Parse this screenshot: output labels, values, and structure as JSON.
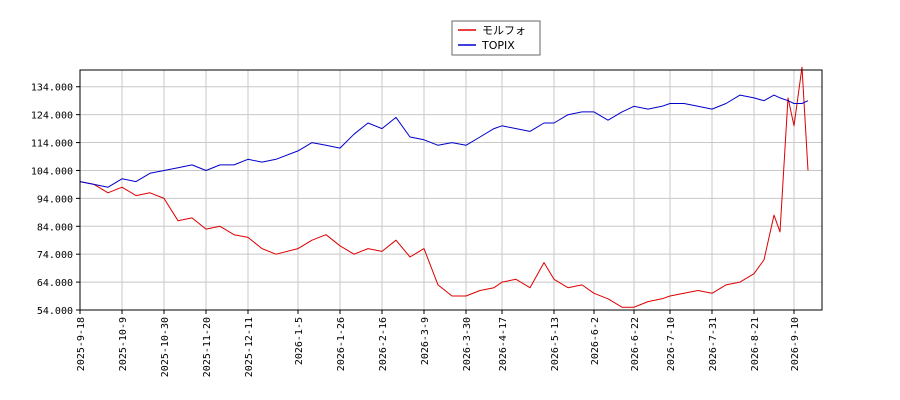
{
  "chart_data": {
    "type": "line",
    "title": "",
    "xlabel": "",
    "ylabel": "",
    "ylim": [
      54.0,
      140.0
    ],
    "y_ticks": [
      "54.000",
      "64.000",
      "74.000",
      "84.000",
      "94.000",
      "104.000",
      "114.000",
      "124.000",
      "134.000"
    ],
    "y_tick_values": [
      54,
      64,
      74,
      84,
      94,
      104,
      114,
      124,
      134
    ],
    "x_ticks": [
      "2025-9-18",
      "2025-10-9",
      "2025-10-30",
      "2025-11-20",
      "2025-12-11",
      "2026-1-5",
      "2026-1-26",
      "2026-2-16",
      "2026-3-9",
      "2026-3-30",
      "2026-4-17",
      "2026-5-13",
      "2026-6-2",
      "2026-6-22",
      "2026-7-10",
      "2026-7-31",
      "2026-8-21",
      "2026-9-10"
    ],
    "x": [
      "2025-9-18",
      "2025-9-25",
      "2025-10-2",
      "2025-10-9",
      "2025-10-16",
      "2025-10-23",
      "2025-10-30",
      "2025-11-6",
      "2025-11-13",
      "2025-11-20",
      "2025-11-27",
      "2025-12-4",
      "2025-12-11",
      "2025-12-18",
      "2025-12-25",
      "2026-1-5",
      "2026-1-12",
      "2026-1-19",
      "2026-1-26",
      "2026-2-2",
      "2026-2-9",
      "2026-2-16",
      "2026-2-23",
      "2026-3-2",
      "2026-3-9",
      "2026-3-16",
      "2026-3-23",
      "2026-3-30",
      "2026-4-6",
      "2026-4-13",
      "2026-4-17",
      "2026-4-24",
      "2026-5-1",
      "2026-5-8",
      "2026-5-13",
      "2026-5-20",
      "2026-5-27",
      "2026-6-2",
      "2026-6-9",
      "2026-6-16",
      "2026-6-22",
      "2026-6-29",
      "2026-7-6",
      "2026-7-10",
      "2026-7-17",
      "2026-7-24",
      "2026-7-31",
      "2026-8-7",
      "2026-8-14",
      "2026-8-21",
      "2026-8-26",
      "2026-8-31",
      "2026-9-3",
      "2026-9-7",
      "2026-9-10",
      "2026-9-14",
      "2026-9-17"
    ],
    "series": [
      {
        "name": "モルフォ",
        "color": "#dd0000",
        "values": [
          100,
          99,
          96,
          98,
          95,
          96,
          94,
          86,
          87,
          83,
          84,
          81,
          80,
          76,
          74,
          76,
          79,
          81,
          77,
          74,
          76,
          75,
          79,
          73,
          76,
          63,
          59,
          59,
          61,
          62,
          64,
          65,
          62,
          71,
          65,
          62,
          63,
          60,
          58,
          55,
          55,
          57,
          58,
          59,
          60,
          61,
          60,
          63,
          64,
          67,
          72,
          88,
          82,
          130,
          120,
          141,
          104
        ]
      },
      {
        "name": "TOPIX",
        "color": "#0000cc",
        "values": [
          100,
          99,
          98,
          101,
          100,
          103,
          104,
          105,
          106,
          104,
          106,
          106,
          108,
          107,
          108,
          111,
          114,
          113,
          112,
          117,
          121,
          119,
          123,
          116,
          115,
          113,
          114,
          113,
          116,
          119,
          120,
          119,
          118,
          121,
          121,
          124,
          125,
          125,
          122,
          125,
          127,
          126,
          127,
          128,
          128,
          127,
          126,
          128,
          131,
          130,
          129,
          131,
          130,
          129,
          128,
          128,
          129
        ]
      }
    ],
    "grid": true,
    "legend_position": "top-center"
  }
}
